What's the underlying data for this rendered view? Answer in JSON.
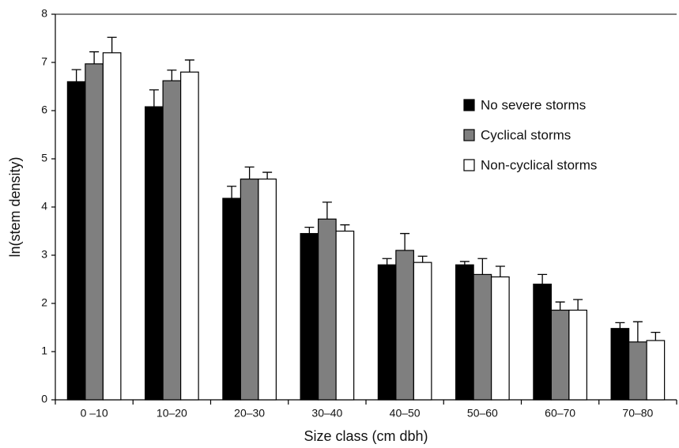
{
  "chart_data": {
    "type": "bar",
    "x_label": "Size class (cm dbh)",
    "y_label": "ln(stem density)",
    "categories": [
      "0 –10",
      "10–20",
      "20–30",
      "30–40",
      "40–50",
      "50–60",
      "60–70",
      "70–80"
    ],
    "series": [
      {
        "name": "No severe storms",
        "color": "#000000",
        "values": [
          6.6,
          6.08,
          4.18,
          3.45,
          2.8,
          2.8,
          2.4,
          1.48
        ],
        "errors": [
          0.25,
          0.35,
          0.25,
          0.13,
          0.13,
          0.07,
          0.2,
          0.12
        ]
      },
      {
        "name": "Cyclical storms",
        "color": "#7f7f7f",
        "values": [
          6.97,
          6.62,
          4.58,
          3.75,
          3.1,
          2.6,
          1.86,
          1.2
        ],
        "errors": [
          0.25,
          0.22,
          0.25,
          0.35,
          0.35,
          0.33,
          0.17,
          0.42
        ]
      },
      {
        "name": "Non-cyclical storms",
        "color": "#ffffff",
        "values": [
          7.2,
          6.8,
          4.58,
          3.5,
          2.85,
          2.55,
          1.86,
          1.23
        ],
        "errors": [
          0.32,
          0.25,
          0.14,
          0.13,
          0.13,
          0.22,
          0.22,
          0.17
        ]
      }
    ],
    "ylim": [
      0,
      8
    ],
    "yticks": [
      0,
      1,
      2,
      3,
      4,
      5,
      6,
      7,
      8
    ],
    "grid": false,
    "legend": "upper right"
  }
}
